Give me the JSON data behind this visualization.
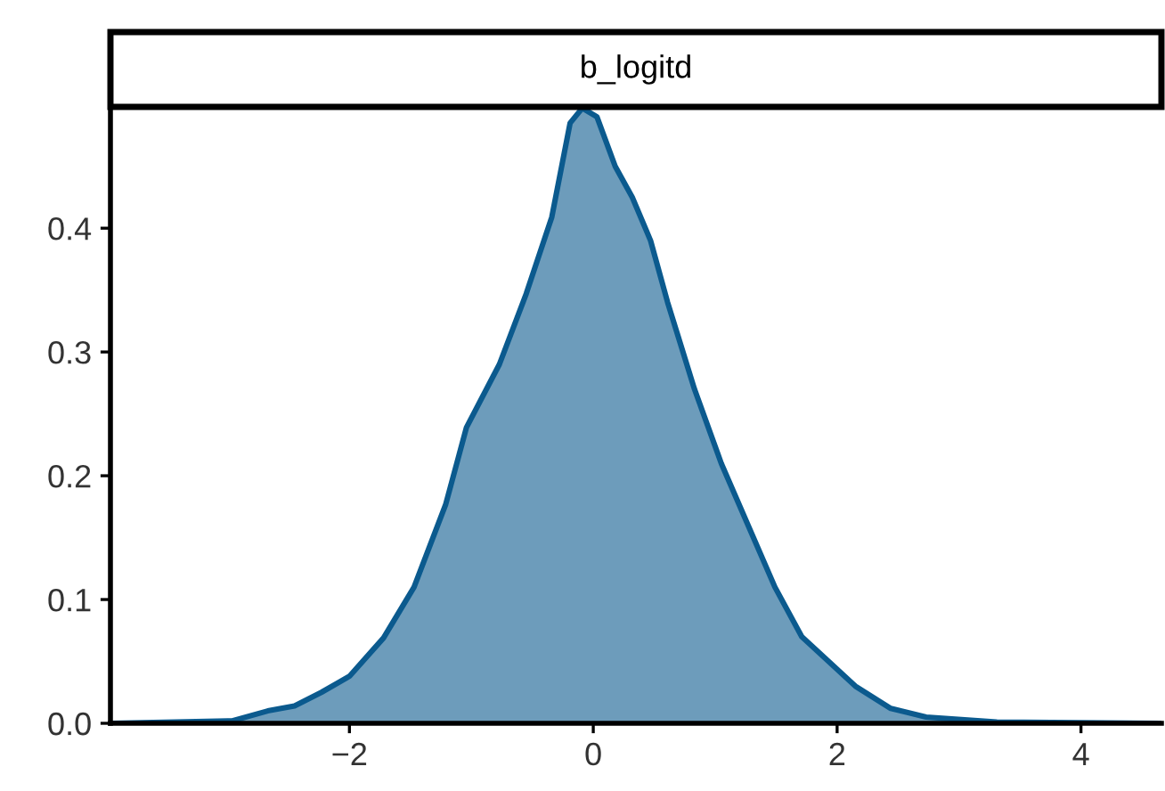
{
  "chart_data": {
    "type": "area",
    "title": "b_logitd",
    "x": [
      -3.96,
      -2.96,
      -2.67,
      -2.45,
      -2.23,
      -2.0,
      -1.72,
      -1.47,
      -1.21,
      -1.04,
      -0.77,
      -0.55,
      -0.34,
      -0.19,
      -0.09,
      0.03,
      0.18,
      0.32,
      0.47,
      0.61,
      0.83,
      1.05,
      1.27,
      1.49,
      1.71,
      1.93,
      2.15,
      2.44,
      2.73,
      3.31,
      4.66
    ],
    "series": [
      {
        "color": "#0b5a8e",
        "values": [
          0.0,
          0.002,
          0.01,
          0.014,
          0.025,
          0.038,
          0.069,
          0.11,
          0.177,
          0.239,
          0.29,
          0.347,
          0.409,
          0.485,
          0.497,
          0.49,
          0.45,
          0.425,
          0.39,
          0.34,
          0.27,
          0.21,
          0.16,
          0.11,
          0.07,
          0.05,
          0.03,
          0.012,
          0.005,
          0.001,
          0.0
        ]
      }
    ],
    "xlim": [
      -3.96,
      4.66
    ],
    "ylim": [
      0,
      0.498
    ],
    "xticks": [
      {
        "value": -2,
        "label": "−2"
      },
      {
        "value": 0,
        "label": "0"
      },
      {
        "value": 2,
        "label": "2"
      },
      {
        "value": 4,
        "label": "4"
      }
    ],
    "yticks": [
      {
        "value": 0,
        "label": "0.0"
      },
      {
        "value": 0.1,
        "label": "0.1"
      },
      {
        "value": 0.2,
        "label": "0.2"
      },
      {
        "value": 0.3,
        "label": "0.3"
      },
      {
        "value": 0.4,
        "label": "0.4"
      }
    ],
    "grid": false,
    "legend": false
  }
}
